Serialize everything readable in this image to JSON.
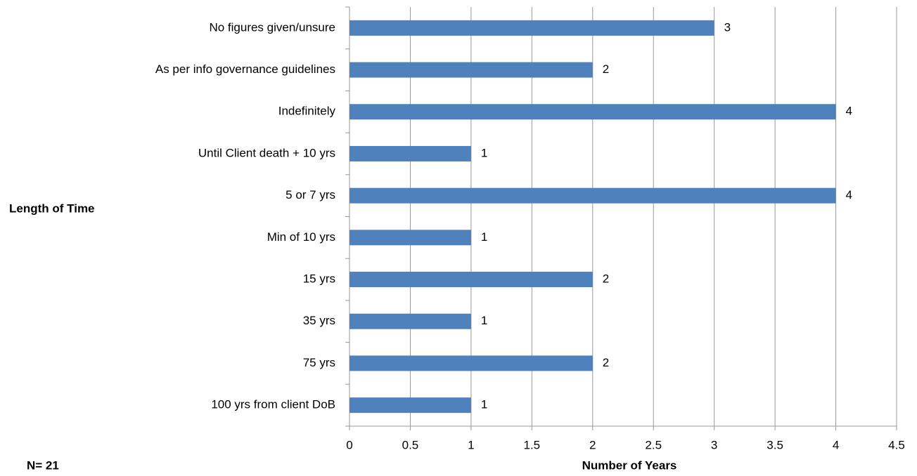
{
  "chart_data": {
    "type": "bar",
    "orientation": "horizontal",
    "ylabel": "Length of Time",
    "xlabel": "Number of Years",
    "annotation": "N= 21",
    "categories": [
      "No figures given/unsure",
      "As per info governance guidelines",
      "Indefinitely",
      "Until Client death + 10 yrs",
      "5 or 7 yrs",
      "Min of 10 yrs",
      "15 yrs",
      "35 yrs",
      "75 yrs",
      "100 yrs from client DoB"
    ],
    "values": [
      3,
      2,
      4,
      1,
      4,
      1,
      2,
      1,
      2,
      1
    ],
    "color": "#4f81bd",
    "xlim": [
      0,
      4.5
    ],
    "xticks": [
      0,
      0.5,
      1,
      1.5,
      2,
      2.5,
      3,
      3.5,
      4,
      4.5
    ],
    "grid": true
  }
}
